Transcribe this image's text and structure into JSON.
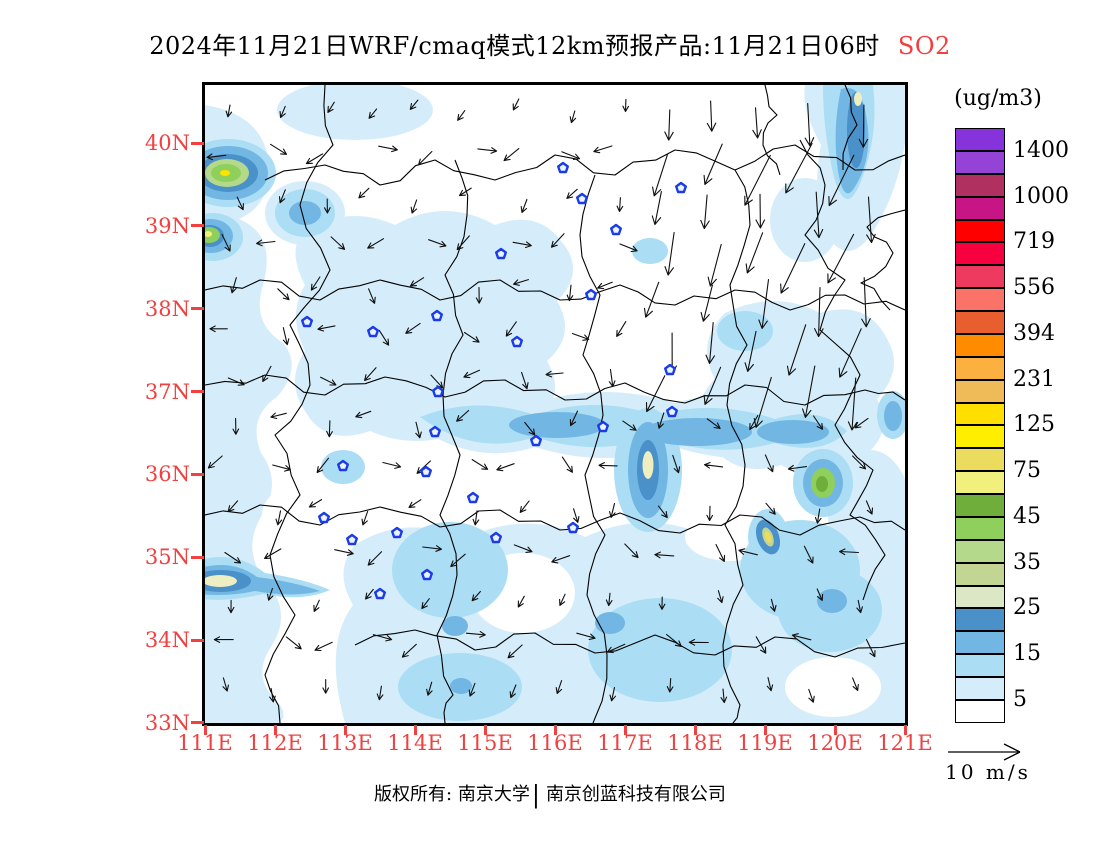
{
  "title": {
    "text": "2024年11月21日WRF/cmaq模式12km预报产品:11月21日06时",
    "pollutant": "SO2"
  },
  "axes": {
    "lat": [
      "40N",
      "39N",
      "38N",
      "37N",
      "36N",
      "35N",
      "34N",
      "33N"
    ],
    "lon": [
      "111E",
      "112E",
      "113E",
      "114E",
      "115E",
      "116E",
      "117E",
      "118E",
      "119E",
      "120E",
      "121E"
    ]
  },
  "legend": {
    "units": "(ug/m3)",
    "labels": [
      "1400",
      "1000",
      "719",
      "556",
      "394",
      "231",
      "125",
      "75",
      "45",
      "35",
      "25",
      "15",
      "5"
    ],
    "colors": [
      "#8633db",
      "#9443d6",
      "#b03060",
      "#c71585",
      "#ff0000",
      "#f8003f",
      "#ee3a5e",
      "#fa7268",
      "#e85e2e",
      "#ff8c00",
      "#fcb040",
      "#eebb58",
      "#ffdf00",
      "#ffee00",
      "#ecdc5e",
      "#f2f07c",
      "#6fae3b",
      "#8fd05c",
      "#b5d98a",
      "#c2d593",
      "#dce7c6",
      "#4a90c9",
      "#72b6e4",
      "#abddf4",
      "#d5edfa",
      "#ffffff"
    ]
  },
  "wind_scale": {
    "label": "10 m/s"
  },
  "footer": {
    "left": "版权所有: 南京大学",
    "separator": "|",
    "right": "南京创蓝科技有限公司"
  },
  "colors": {
    "axis_label": "#f04040",
    "title_highlight": "#f04040",
    "map_fill_low": "#d5edfa",
    "map_fill_mid": "#abddf4",
    "map_fill_high": "#72b6e4",
    "map_fill_higher": "#4a90c9",
    "marker_blue": "#1b3be8"
  }
}
